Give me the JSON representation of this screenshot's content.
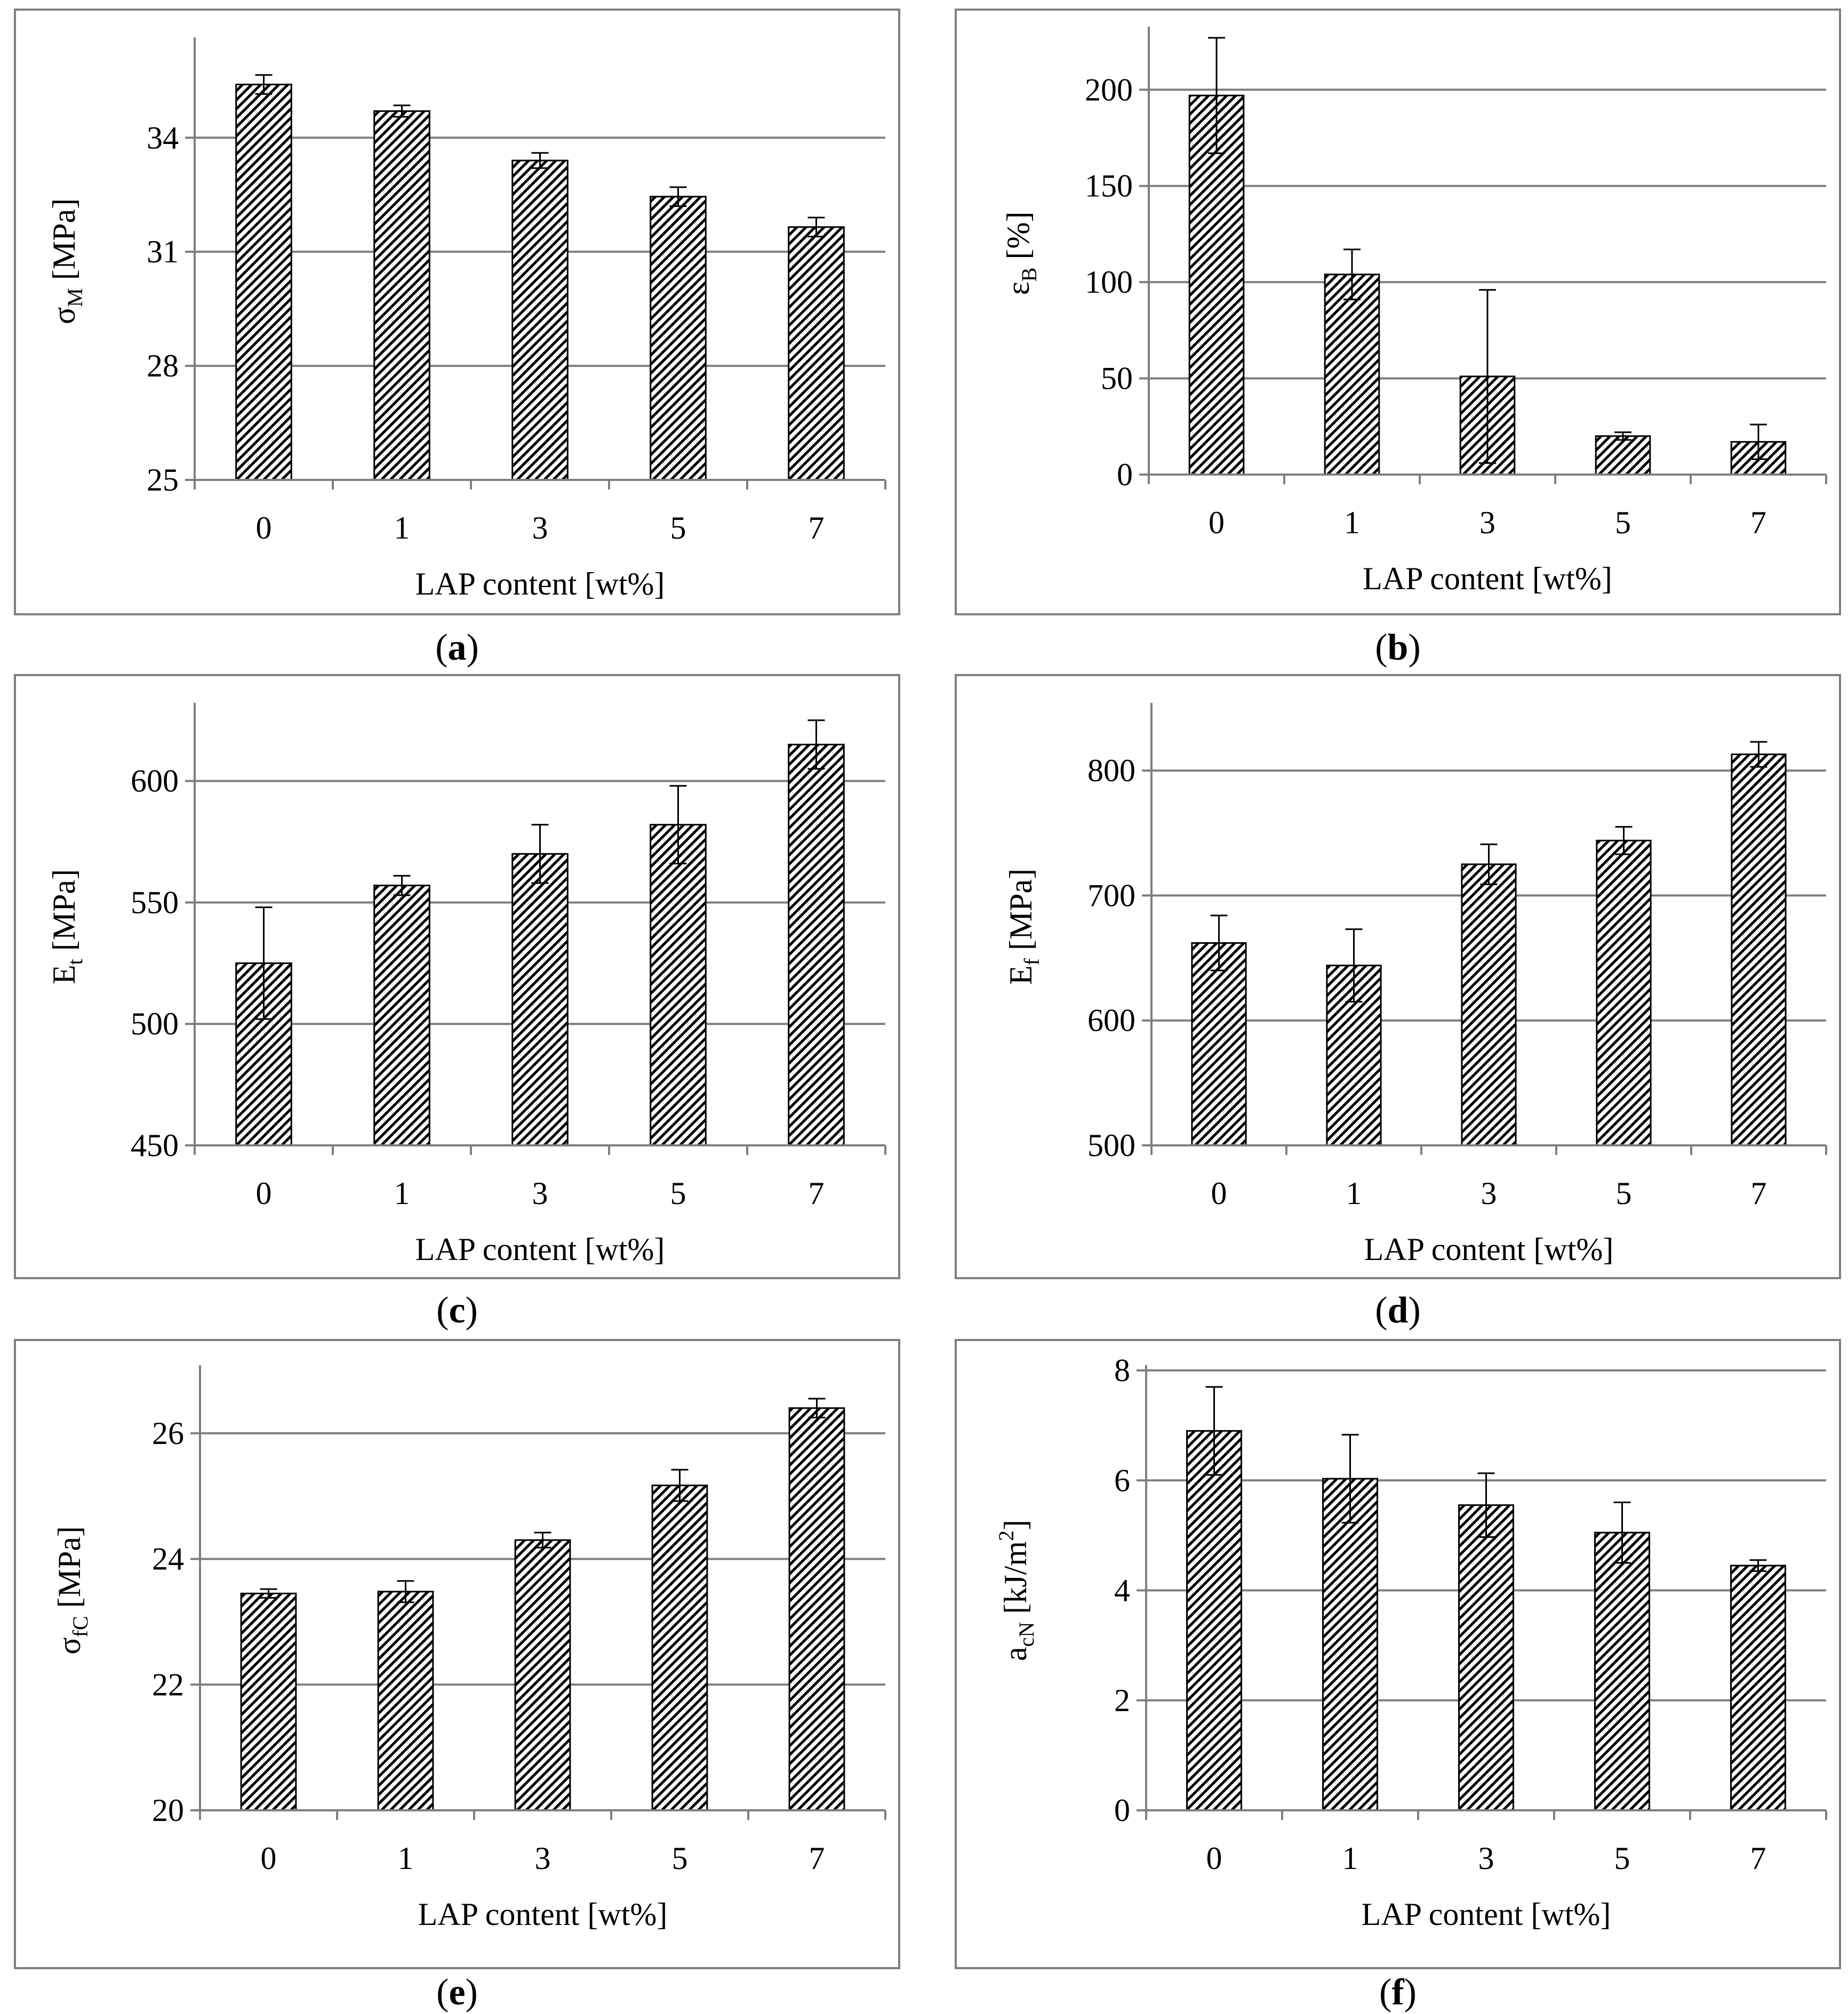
{
  "chart_data": [
    {
      "id": "a",
      "type": "bar",
      "panel_label": "a",
      "xlabel": "LAP content [wt%]",
      "ylabel": {
        "base": "σ",
        "sub": "M",
        "unit": " [MPa]"
      },
      "categories": [
        "0",
        "1",
        "3",
        "5",
        "7"
      ],
      "values": [
        35.4,
        34.7,
        33.4,
        32.45,
        31.65
      ],
      "errors": [
        0.25,
        0.15,
        0.2,
        0.25,
        0.25
      ],
      "ylim": [
        25,
        36.5
      ],
      "yticks": [
        25,
        28,
        31,
        34
      ],
      "grid": true,
      "bar_fill": "diagonal-hatch"
    },
    {
      "id": "b",
      "type": "bar",
      "panel_label": "b",
      "xlabel": "LAP content [wt%]",
      "ylabel": {
        "base": "ε",
        "sub": "B",
        "unit": " [%]"
      },
      "categories": [
        "0",
        "1",
        "3",
        "5",
        "7"
      ],
      "values": [
        197,
        104,
        51,
        20,
        17
      ],
      "errors": [
        30,
        13,
        45,
        2,
        9
      ],
      "ylim": [
        0,
        230
      ],
      "yticks": [
        0,
        50,
        100,
        150,
        200
      ],
      "grid": true,
      "bar_fill": "diagonal-hatch"
    },
    {
      "id": "c",
      "type": "bar",
      "panel_label": "c",
      "xlabel": "LAP content [wt%]",
      "ylabel": {
        "base": "E",
        "sub": "t",
        "unit": " [MPa]"
      },
      "categories": [
        "0",
        "1",
        "3",
        "5",
        "7"
      ],
      "values": [
        525,
        557,
        570,
        582,
        615
      ],
      "errors": [
        23,
        4,
        12,
        16,
        10
      ],
      "ylim": [
        450,
        630
      ],
      "yticks": [
        450,
        500,
        550,
        600
      ],
      "grid": true,
      "bar_fill": "diagonal-hatch"
    },
    {
      "id": "d",
      "type": "bar",
      "panel_label": "d",
      "xlabel": "LAP content [wt%]",
      "ylabel": {
        "base": "E",
        "sub": "f",
        "unit": " [MPa]"
      },
      "categories": [
        "0",
        "1",
        "3",
        "5",
        "7"
      ],
      "values": [
        662,
        644,
        725,
        744,
        813
      ],
      "errors": [
        22,
        29,
        16,
        11,
        10
      ],
      "ylim": [
        500,
        850
      ],
      "yticks": [
        500,
        600,
        700,
        800
      ],
      "grid": true,
      "bar_fill": "diagonal-hatch"
    },
    {
      "id": "e",
      "type": "bar",
      "panel_label": "e",
      "xlabel": "LAP content [wt%]",
      "ylabel": {
        "base": "σ",
        "sub": "fC",
        "unit": " [MPa]"
      },
      "categories": [
        "0",
        "1",
        "3",
        "5",
        "7"
      ],
      "values": [
        23.45,
        23.48,
        24.3,
        25.17,
        26.4
      ],
      "errors": [
        0.07,
        0.17,
        0.12,
        0.25,
        0.15
      ],
      "ylim": [
        20,
        27
      ],
      "yticks": [
        20,
        22,
        24,
        26
      ],
      "grid": true,
      "bar_fill": "diagonal-hatch"
    },
    {
      "id": "f",
      "type": "bar",
      "panel_label": "f",
      "xlabel": "LAP content [wt%]",
      "ylabel": {
        "base": "a",
        "sub": "cN",
        "unit": "  [kJ/m",
        "sup": "2",
        "unit_end": "]"
      },
      "categories": [
        "0",
        "1",
        "3",
        "5",
        "7"
      ],
      "values": [
        6.9,
        6.03,
        5.55,
        5.05,
        4.45
      ],
      "errors": [
        0.8,
        0.8,
        0.58,
        0.55,
        0.1
      ],
      "ylim": [
        0,
        8
      ],
      "yticks": [
        0,
        2,
        4,
        6,
        8
      ],
      "grid": true,
      "bar_fill": "diagonal-hatch"
    }
  ],
  "colors": {
    "frame": "#7f7f7f",
    "gridline": "#7f7f7f",
    "axis": "#7f7f7f",
    "bar_edge": "#000000",
    "hatch": "#000000",
    "background": "#ffffff"
  }
}
